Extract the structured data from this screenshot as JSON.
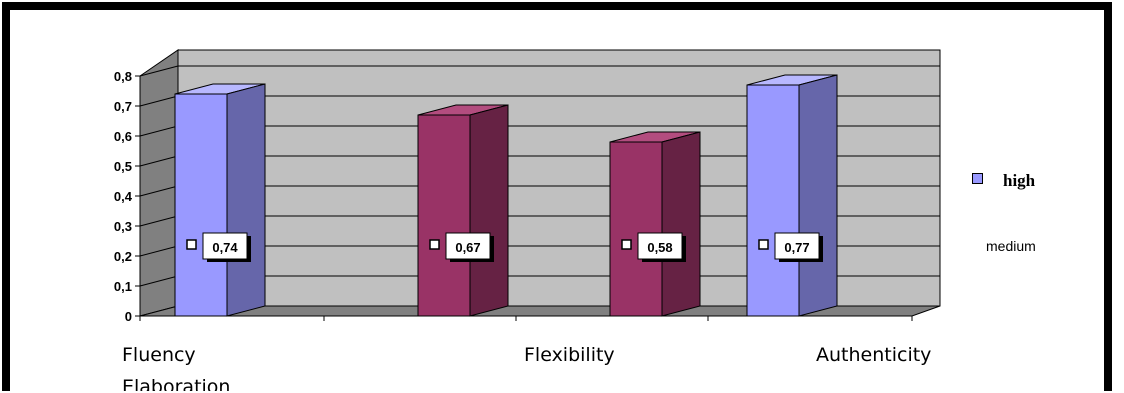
{
  "chart_data": {
    "type": "bar",
    "style": "3d-clustered",
    "categories": [
      "Fluency",
      "Elaboration",
      "Flexibility",
      "Authenticity"
    ],
    "series": [
      {
        "name": "high",
        "color": "#9999FF",
        "side_color": "#6666AA",
        "top_color": "#B8B8FF",
        "values": [
          0.74,
          null,
          null,
          0.77
        ]
      },
      {
        "name": "medium",
        "color": "#993366",
        "side_color": "#662244",
        "top_color": "#B34D7F",
        "values": [
          null,
          0.67,
          0.58,
          null
        ]
      }
    ],
    "data_labels": [
      "0,74",
      "0,67",
      "0,58",
      "0,77"
    ],
    "yticks": [
      "0",
      "0,1",
      "0,2",
      "0,3",
      "0,4",
      "0,5",
      "0,6",
      "0,7",
      "0,8"
    ],
    "ylim": [
      0,
      0.8
    ],
    "grid": true,
    "wall_color": "#C0C0C0",
    "legend_position": "right",
    "title": "",
    "xlabel": "",
    "ylabel": ""
  }
}
